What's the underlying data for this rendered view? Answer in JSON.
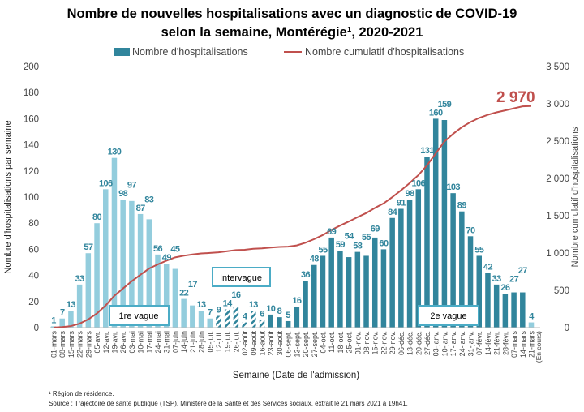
{
  "chart_data": {
    "type": "bar",
    "title_line1": "Nombre de nouvelles hospitalisations avec un diagnostic de COVID-19",
    "title_line2": "selon la semaine, Montérégie¹, 2020-2021",
    "xlabel": "Semaine (Date de l'admission)",
    "ylabel": "Nombre d'hospitalisations par semaine",
    "y2label": "Nombre cumulatif d'hospitalisations",
    "ylim": [
      0,
      200
    ],
    "yticks": [
      "0",
      "20",
      "40",
      "60",
      "80",
      "100",
      "120",
      "140",
      "160",
      "180",
      "200"
    ],
    "y2lim": [
      0,
      3500
    ],
    "y2ticks": [
      "0",
      "500",
      "1 000",
      "1 500",
      "2 000",
      "2 500",
      "3 000",
      "3 500"
    ],
    "legend_position": "top",
    "categories": [
      "01-mars",
      "08-mars",
      "15-mars",
      "22-mars",
      "29-mars",
      "05-avr.",
      "12-avr.",
      "19-avr.",
      "26-avr.",
      "03-mai",
      "10-mai",
      "17-mai",
      "24-mai",
      "31-mai",
      "07-juin",
      "14-juin",
      "21-juin",
      "28-juin",
      "05-juil.",
      "12-juil.",
      "19-juil.",
      "26-juil.",
      "02-août",
      "09-août",
      "16-août",
      "23-août",
      "30-août",
      "06-sept.",
      "13-sept.",
      "20-sept.",
      "27-sept.",
      "04-oct.",
      "11-oct.",
      "18-oct.",
      "25-oct.",
      "01-nov.",
      "08-nov.",
      "15-nov.",
      "22-nov.",
      "29-nov.",
      "06-déc.",
      "13-déc.",
      "20-déc.",
      "27-déc.",
      "03-janv.",
      "10-janv.",
      "17-janv.",
      "24-janv.",
      "31-janv.",
      "07-févr.",
      "14-févr.",
      "21-févr.",
      "28-févr.",
      "07-mars",
      "14-mars",
      "21-mars"
    ],
    "last_category_note": "(En cours)",
    "series": [
      {
        "name": "Nombre d'hospitalisations",
        "kind": "bar",
        "color": "#31859C",
        "values": [
          1,
          7,
          13,
          33,
          57,
          80,
          106,
          130,
          98,
          97,
          87,
          83,
          56,
          49,
          45,
          22,
          17,
          13,
          7,
          9,
          14,
          16,
          4,
          13,
          6,
          10,
          8,
          5,
          16,
          36,
          48,
          55,
          69,
          59,
          54,
          58,
          55,
          69,
          60,
          84,
          91,
          98,
          106,
          131,
          160,
          159,
          103,
          89,
          70,
          55,
          42,
          33,
          26,
          27,
          27,
          4
        ]
      },
      {
        "name": "Nombre cumulatif d'hospitalisations",
        "kind": "line",
        "axis": "right",
        "color": "#C0504D",
        "values": [
          1,
          8,
          21,
          54,
          111,
          191,
          297,
          427,
          525,
          622,
          709,
          792,
          848,
          897,
          942,
          964,
          981,
          994,
          1001,
          1010,
          1024,
          1040,
          1044,
          1057,
          1063,
          1073,
          1081,
          1086,
          1102,
          1138,
          1186,
          1241,
          1310,
          1369,
          1423,
          1481,
          1536,
          1605,
          1665,
          1749,
          1840,
          1938,
          2044,
          2175,
          2335,
          2494,
          2597,
          2686,
          2756,
          2811,
          2853,
          2886,
          2912,
          2939,
          2966,
          2970
        ]
      }
    ],
    "bar_colors": {
      "wave1": "#93CDDD",
      "intervague": "#31859C",
      "wave2": "#31859C",
      "current": "#93CDDD"
    },
    "annotations": {
      "total": "2 970",
      "wave1": "1re vague",
      "intervague": "Intervague",
      "wave2": "2e vague"
    }
  },
  "footnotes": {
    "note1": "¹ Région de résidence.",
    "source": "Source : Trajectoire de santé publique (TSP), Ministère de la Santé et des Services sociaux, extrait le 21 mars 2021 à 19h41."
  }
}
